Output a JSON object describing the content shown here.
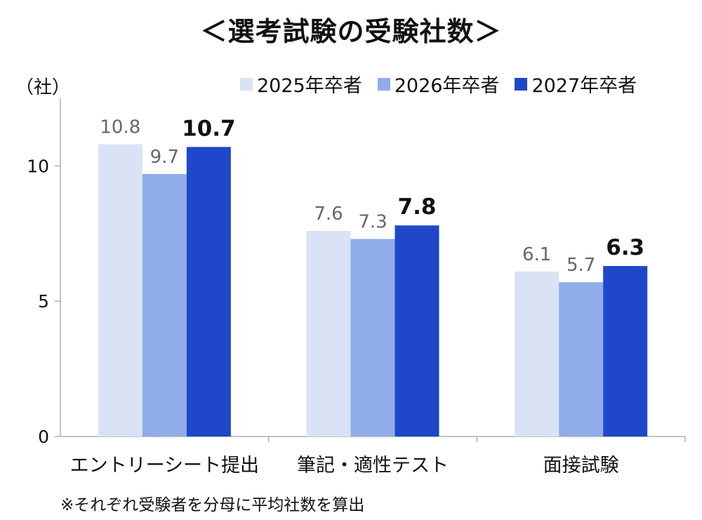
{
  "chart_data": {
    "type": "bar",
    "title": "＜選考試験の受験社数＞",
    "ylabel": "（社）",
    "categories": [
      "エントリーシート提出",
      "筆記・適性テスト",
      "面接試験"
    ],
    "series": [
      {
        "name": "2025年卒者",
        "values": [
          10.8,
          7.6,
          6.1
        ],
        "color": "#dae3f5"
      },
      {
        "name": "2026年卒者",
        "values": [
          9.7,
          7.3,
          5.7
        ],
        "color": "#90ace9"
      },
      {
        "name": "2027年卒者",
        "values": [
          10.7,
          7.8,
          6.3
        ],
        "color": "#1e48c9"
      }
    ],
    "value_labels": [
      [
        "10.8",
        "7.6",
        "6.1"
      ],
      [
        "9.7",
        "7.3",
        "5.7"
      ],
      [
        "10.7",
        "7.8",
        "6.3"
      ]
    ],
    "ylim": [
      0,
      12.5
    ],
    "yticks": [
      0,
      5,
      10
    ],
    "ytick_labels": [
      "0",
      "5",
      "10"
    ],
    "grid": false,
    "legend": "top-right",
    "bold_series": 2,
    "footnote": "※それぞれ受験者を分母に平均社数を算出"
  }
}
